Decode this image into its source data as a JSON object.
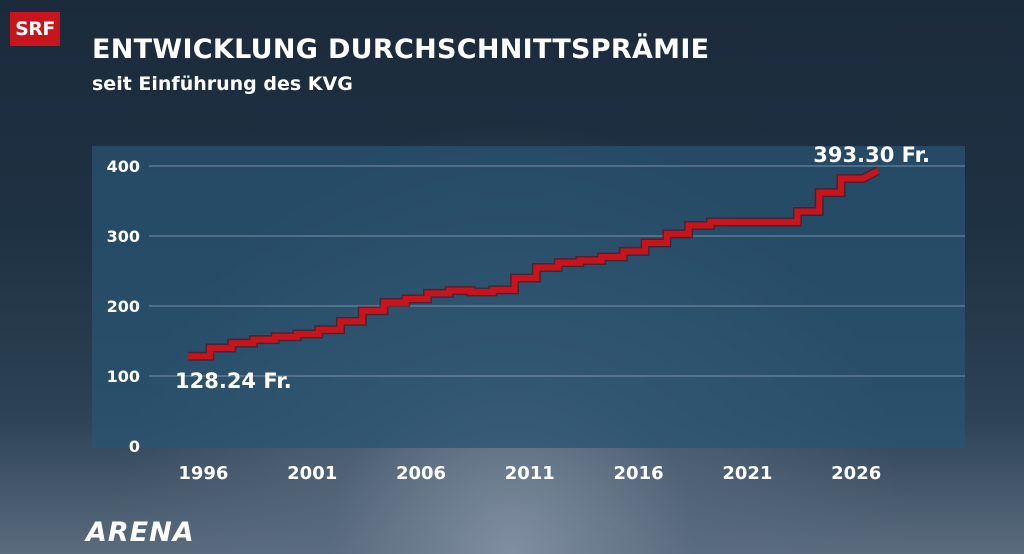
{
  "header": {
    "logo": "SRF",
    "title": "ENTWICKLUNG DURCHSCHNITTSPRÄMIE",
    "subtitle": "seit Einführung des KVG"
  },
  "footer": {
    "brand": "ARENA"
  },
  "colors": {
    "line": "#c8151d",
    "plot_bg": "#2a5473",
    "grid": "#9fb3c4",
    "text": "#ffffff",
    "logo_bg": "#c8151d"
  },
  "chart_data": {
    "type": "line",
    "style": "step",
    "grid": true,
    "ylim": [
      0,
      420
    ],
    "xlim": [
      1993.5,
      2031
    ],
    "yticks": [
      0,
      100,
      200,
      300,
      400
    ],
    "xticks": [
      1996,
      2001,
      2006,
      2011,
      2016,
      2021,
      2026
    ],
    "series": [
      {
        "x": [
          1996,
          1997,
          1998,
          1999,
          2000,
          2001,
          2002,
          2003,
          2004,
          2005,
          2006,
          2007,
          2008,
          2009,
          2010,
          2011,
          2012,
          2013,
          2014,
          2015,
          2016,
          2017,
          2018,
          2019,
          2020,
          2021,
          2022,
          2023,
          2024,
          2025,
          2026
        ],
        "values": [
          128.24,
          140,
          147,
          152,
          156,
          160,
          166,
          178,
          193,
          205,
          210,
          218,
          222,
          220,
          223,
          240,
          255,
          262,
          265,
          270,
          278,
          290,
          303,
          315,
          320,
          320,
          320,
          320,
          335,
          362,
          382
        ]
      }
    ],
    "last_point": {
      "x": 2027,
      "value": 393.3
    },
    "annotations": [
      {
        "text": "128.24 Fr.",
        "x": 1996,
        "value": 128.24
      },
      {
        "text": "393.30 Fr.",
        "x": 2027,
        "value": 393.3
      }
    ]
  }
}
